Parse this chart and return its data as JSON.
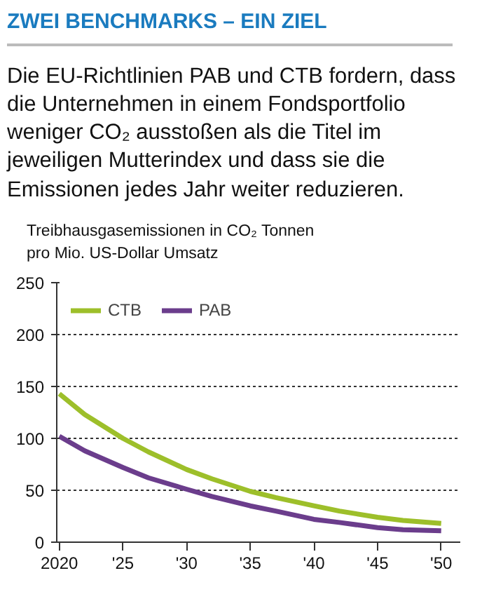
{
  "chart_data": {
    "type": "line",
    "title": "ZWEI BENCHMARKS – EIN ZIEL",
    "subtitle": "Die EU-Richtlinien PAB und CTB fordern, dass die Unternehmen in einem Fondsportfolio weniger CO₂ ausstoßen als die Titel im jeweiligen Mutterindex und dass sie die Emissionen jedes Jahr weiter reduzieren.",
    "ylabel": "Treibhausgasemissionen in CO₂ Tonnen\npro Mio. US-Dollar Umsatz",
    "x": [
      2020,
      2022,
      2025,
      2027,
      2030,
      2032,
      2035,
      2037,
      2040,
      2042,
      2045,
      2047,
      2050
    ],
    "series": [
      {
        "name": "CTB",
        "color": "#9dbf2a",
        "values": [
          143,
          123,
          100,
          87,
          70,
          61,
          49,
          43,
          35,
          30,
          24,
          21,
          18
        ]
      },
      {
        "name": "PAB",
        "color": "#6b3d8c",
        "values": [
          102,
          88,
          72,
          62,
          51,
          44,
          35,
          30,
          22,
          19,
          14,
          12,
          11
        ]
      }
    ],
    "xlim": [
      2019.8,
      2051.5
    ],
    "ylim": [
      0,
      250
    ],
    "xticks": [
      2020,
      {
        "value": 2025,
        "label": "'25"
      },
      {
        "value": 2030,
        "label": "'30"
      },
      {
        "value": 2035,
        "label": "'35"
      },
      {
        "value": 2040,
        "label": "'40"
      },
      {
        "value": 2045,
        "label": "'45"
      },
      {
        "value": 2050,
        "label": "'50"
      }
    ],
    "yticks": [
      0,
      50,
      100,
      150,
      200,
      250
    ],
    "grid": "y",
    "legend": "top left",
    "line_style": "solid",
    "marker": "none"
  }
}
